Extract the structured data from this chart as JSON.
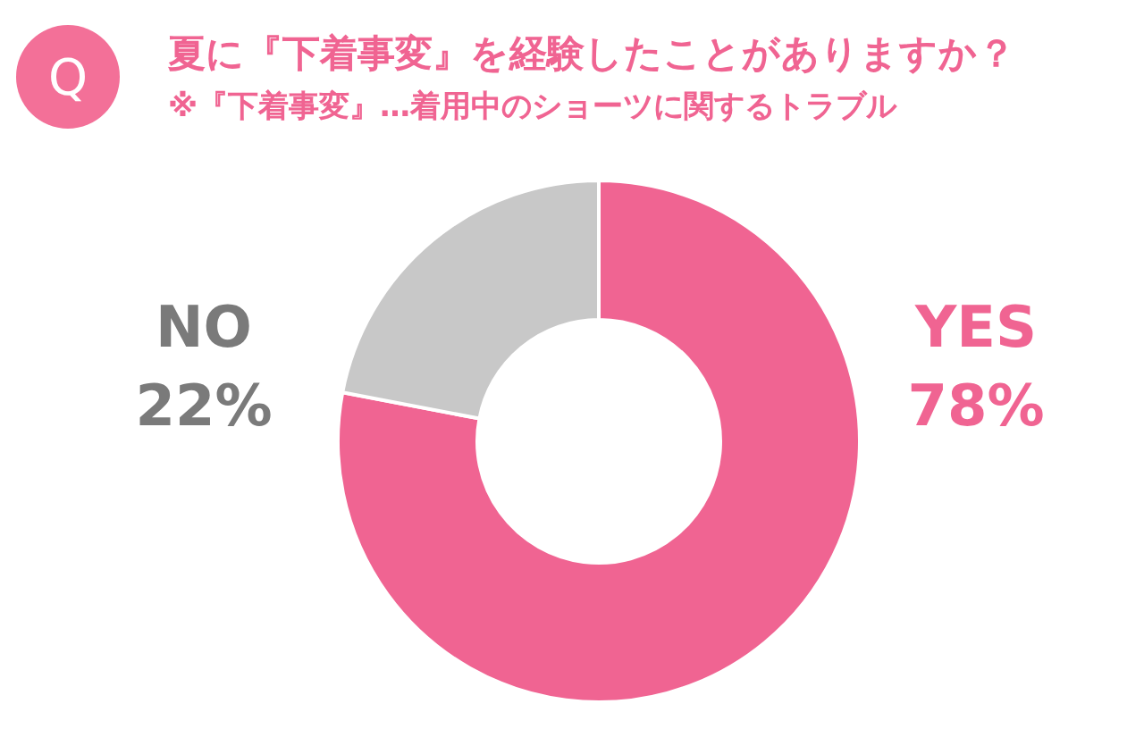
{
  "chart_data": {
    "type": "donut",
    "title": "夏に『下着事変』を経験したことがありますか？",
    "subtitle": "※『下着事変』…着用中のショーツに関するトラブル",
    "annotations": [
      "Q"
    ],
    "categories": [
      "YES",
      "NO"
    ],
    "values": [
      78,
      22
    ],
    "colors": [
      "#f06492",
      "#c8c8c8"
    ],
    "value_labels": [
      "78%",
      "22%"
    ]
  }
}
